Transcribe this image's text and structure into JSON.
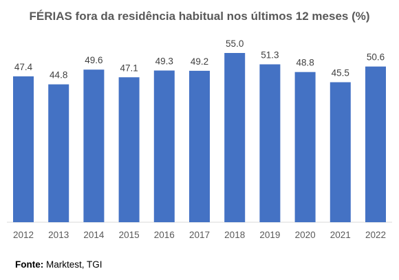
{
  "chart_data": {
    "type": "bar",
    "title": "FÉRIAS fora da residência habitual nos últimos 12 meses (%)",
    "categories": [
      "2012",
      "2013",
      "2014",
      "2015",
      "2016",
      "2017",
      "2018",
      "2019",
      "2020",
      "2021",
      "2022"
    ],
    "values": [
      47.4,
      44.8,
      49.6,
      47.1,
      49.3,
      49.2,
      55.0,
      51.3,
      48.8,
      45.5,
      50.6
    ],
    "value_labels": [
      "47.4",
      "44.8",
      "49.6",
      "47.1",
      "49.3",
      "49.2",
      "55.0",
      "51.3",
      "48.8",
      "45.5",
      "50.6"
    ],
    "xlabel": "",
    "ylabel": "",
    "ylim": [
      0,
      55
    ],
    "grid": false,
    "bar_color": "#4472C4"
  },
  "source": {
    "label": "Fonte:",
    "text": " Marktest, TGI"
  }
}
